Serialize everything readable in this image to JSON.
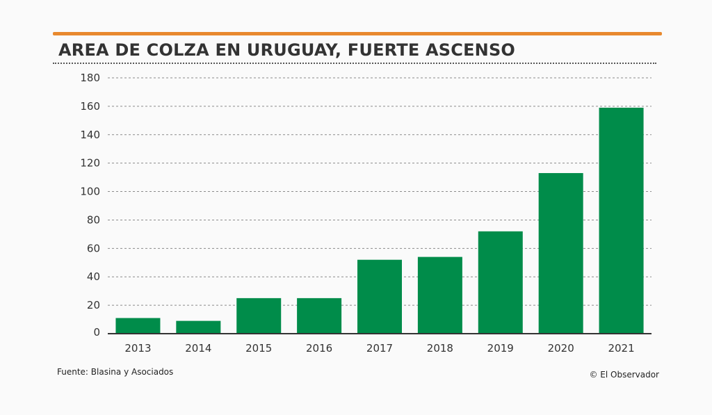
{
  "header": {
    "title": "AREA DE COLZA EN URUGUAY, FUERTE ASCENSO",
    "accent_color": "#e8892e"
  },
  "footer": {
    "source": "Fuente: Blasina y Asociados",
    "credit": "© El Observador"
  },
  "chart_data": {
    "type": "bar",
    "title": "AREA DE COLZA EN URUGUAY, FUERTE ASCENSO",
    "xlabel": "",
    "ylabel": "",
    "categories": [
      "2013",
      "2014",
      "2015",
      "2016",
      "2017",
      "2018",
      "2019",
      "2020",
      "2021"
    ],
    "values": [
      11,
      9,
      25,
      25,
      52,
      54,
      72,
      113,
      159
    ],
    "ylim": [
      0,
      180
    ],
    "yticks": [
      0,
      20,
      40,
      60,
      80,
      100,
      120,
      140,
      160,
      180
    ],
    "grid": true,
    "legend": "none",
    "bar_color": "#008c4a"
  }
}
